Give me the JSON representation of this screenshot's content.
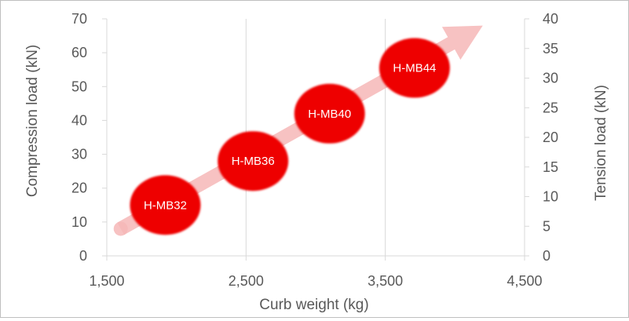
{
  "chart_data": {
    "type": "bubble",
    "xlabel": "Curb weight (kg)",
    "ylabel_left": "Compression load (kN)",
    "ylabel_right": "Tension load (kN)",
    "xlim": [
      1500,
      4500
    ],
    "x_ticks": [
      "1,500",
      "2,500",
      "3,500",
      "4,500"
    ],
    "ylim_left": [
      0,
      70
    ],
    "y_ticks_left": [
      "0",
      "10",
      "20",
      "30",
      "40",
      "50",
      "60",
      "70"
    ],
    "ylim_right": [
      0,
      40
    ],
    "y_ticks_right": [
      "0",
      "5",
      "10",
      "15",
      "20",
      "25",
      "30",
      "35",
      "40"
    ],
    "grid": "vertical",
    "points": [
      {
        "label": "H-MB32",
        "x": 1920,
        "y": 15
      },
      {
        "label": "H-MB36",
        "x": 2550,
        "y": 28
      },
      {
        "label": "H-MB40",
        "x": 3100,
        "y": 42
      },
      {
        "label": "H-MB44",
        "x": 3710,
        "y": 55.5
      }
    ],
    "trend_arrow": {
      "from": {
        "x": 1600,
        "y": 8
      },
      "to": {
        "x": 4200,
        "y": 68
      }
    },
    "colors": {
      "bubble": "#ee0000",
      "arrow": "#f6b7b7",
      "grid": "#d9d9d9",
      "text": "#595959"
    }
  }
}
